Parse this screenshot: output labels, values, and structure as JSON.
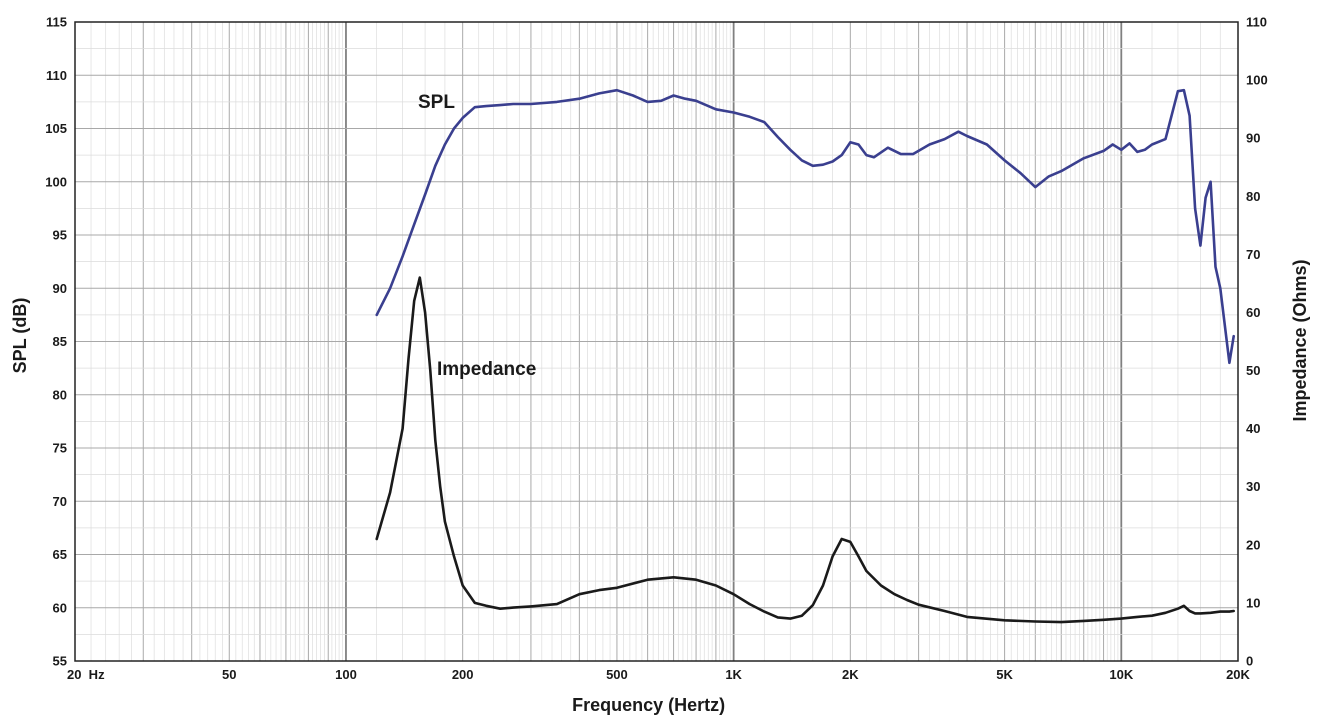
{
  "chart_data": {
    "type": "line",
    "title": "",
    "xlabel": "Frequency (Hertz)",
    "ylabel_left": "SPL (dB)",
    "ylabel_right": "Impedance (Ohms)",
    "x_scale": "log",
    "xlim": [
      20,
      20000
    ],
    "ylim_left": [
      55,
      115
    ],
    "ylim_right": [
      0,
      110
    ],
    "grid": true,
    "x_tick_labels": [
      {
        "value": 20,
        "label": "20  Hz"
      },
      {
        "value": 50,
        "label": "50"
      },
      {
        "value": 100,
        "label": "100"
      },
      {
        "value": 200,
        "label": "200"
      },
      {
        "value": 500,
        "label": "500"
      },
      {
        "value": 1000,
        "label": "1K"
      },
      {
        "value": 2000,
        "label": "2K"
      },
      {
        "value": 5000,
        "label": "5K"
      },
      {
        "value": 10000,
        "label": "10K"
      },
      {
        "value": 20000,
        "label": "20K"
      }
    ],
    "y_left_ticks": [
      55,
      60,
      65,
      70,
      75,
      80,
      85,
      90,
      95,
      100,
      105,
      110,
      115
    ],
    "y_right_ticks": [
      0,
      10,
      20,
      30,
      40,
      50,
      60,
      70,
      80,
      90,
      100,
      110
    ],
    "series": [
      {
        "name": "SPL",
        "axis": "left",
        "color": "#3a3f8f",
        "x": [
          120,
          130,
          140,
          150,
          160,
          170,
          180,
          190,
          200,
          215,
          230,
          250,
          270,
          300,
          350,
          400,
          450,
          500,
          550,
          600,
          650,
          700,
          750,
          800,
          900,
          1000,
          1100,
          1200,
          1300,
          1400,
          1500,
          1600,
          1700,
          1800,
          1900,
          2000,
          2100,
          2200,
          2300,
          2500,
          2700,
          2900,
          3200,
          3500,
          3800,
          4000,
          4500,
          5000,
          5500,
          6000,
          6500,
          7000,
          8000,
          9000,
          9500,
          10000,
          10500,
          11000,
          11500,
          12000,
          13000,
          14000,
          14500,
          15000,
          15500,
          16000,
          16500,
          17000,
          17500,
          18000,
          19000,
          19500
        ],
        "values": [
          87.5,
          90,
          93,
          96,
          98.8,
          101.5,
          103.5,
          105,
          106,
          107,
          107.1,
          107.2,
          107.3,
          107.3,
          107.5,
          107.8,
          108.3,
          108.6,
          108.1,
          107.5,
          107.6,
          108.1,
          107.8,
          107.6,
          106.8,
          106.5,
          106.1,
          105.6,
          104.2,
          103,
          102,
          101.5,
          101.6,
          101.9,
          102.5,
          103.7,
          103.5,
          102.5,
          102.3,
          103.2,
          102.6,
          102.6,
          103.5,
          104,
          104.7,
          104.3,
          103.5,
          102,
          100.8,
          99.5,
          100.5,
          101,
          102.2,
          102.9,
          103.5,
          103,
          103.6,
          102.8,
          103,
          103.5,
          104,
          108.5,
          108.6,
          106.2,
          97.5,
          94,
          98.5,
          100,
          92,
          90,
          83,
          85.5
        ]
      },
      {
        "name": "Impedance",
        "axis": "right",
        "color": "#1a1a1a",
        "x": [
          120,
          130,
          140,
          145,
          150,
          155,
          160,
          165,
          170,
          175,
          180,
          190,
          200,
          215,
          230,
          250,
          270,
          300,
          350,
          400,
          450,
          500,
          600,
          700,
          800,
          900,
          1000,
          1100,
          1200,
          1300,
          1400,
          1500,
          1600,
          1700,
          1800,
          1900,
          2000,
          2100,
          2200,
          2400,
          2600,
          2800,
          3000,
          3500,
          4000,
          5000,
          6000,
          7000,
          8000,
          9000,
          10000,
          11000,
          12000,
          13000,
          14000,
          14500,
          15000,
          15500,
          16000,
          17000,
          18000,
          19000,
          19500
        ],
        "values": [
          21,
          29,
          40,
          52,
          62,
          66,
          60,
          50,
          38,
          30,
          24,
          18,
          13,
          10,
          9.5,
          9,
          9.2,
          9.4,
          9.8,
          11.5,
          12.2,
          12.6,
          14,
          14.4,
          14,
          13,
          11.5,
          9.8,
          8.5,
          7.5,
          7.3,
          7.8,
          9.6,
          13,
          18,
          21,
          20.5,
          18,
          15.5,
          13,
          11.5,
          10.5,
          9.7,
          8.6,
          7.6,
          7,
          6.8,
          6.7,
          6.9,
          7.1,
          7.3,
          7.6,
          7.8,
          8.3,
          9,
          9.5,
          8.6,
          8.2,
          8.2,
          8.3,
          8.5,
          8.5,
          8.6
        ]
      }
    ]
  }
}
